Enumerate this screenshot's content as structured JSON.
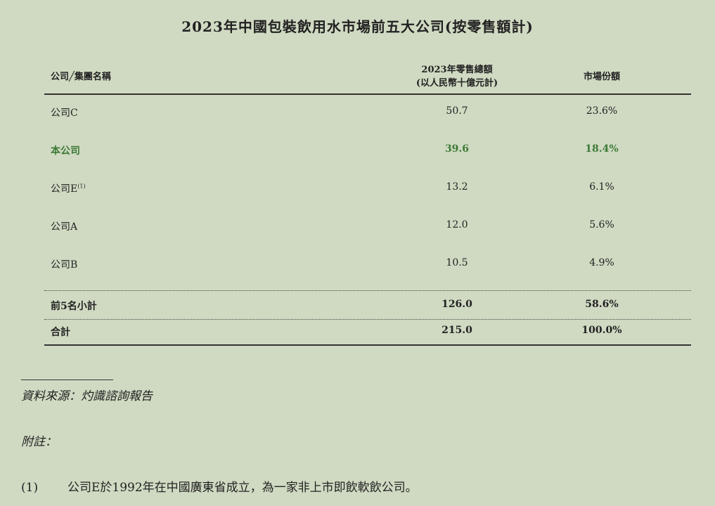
{
  "title": "2023年中國包裝飲用水市場前五大公司(按零售額計)",
  "table": {
    "headers": {
      "company": "公司╱集團名稱",
      "revenue_line1": "2023年零售總額",
      "revenue_line2": "(以人民幣十億元計)",
      "share": "市場份額"
    },
    "rows": [
      {
        "company": "公司C",
        "note": "",
        "revenue": "50.7",
        "share": "23.6%"
      },
      {
        "company": "本公司",
        "note": "",
        "revenue": "39.6",
        "share": "18.4%",
        "highlight_color": "#3e7a38"
      },
      {
        "company": "公司E",
        "note": "(1)",
        "revenue": "13.2",
        "share": "6.1%"
      },
      {
        "company": "公司A",
        "note": "",
        "revenue": "12.0",
        "share": "5.6%"
      },
      {
        "company": "公司B",
        "note": "",
        "revenue": "10.5",
        "share": "4.9%"
      }
    ],
    "subtotal": {
      "label": "前5名小計",
      "revenue": "126.0",
      "share": "58.6%"
    },
    "total": {
      "label": "合計",
      "revenue": "215.0",
      "share": "100.0%"
    }
  },
  "source": "資料來源：灼識諮詢報告",
  "notes_label": "附註：",
  "notes": [
    {
      "marker": "(1)",
      "text": "公司E於1992年在中國廣東省成立，為一家非上市即飲軟飲公司。"
    }
  ]
}
